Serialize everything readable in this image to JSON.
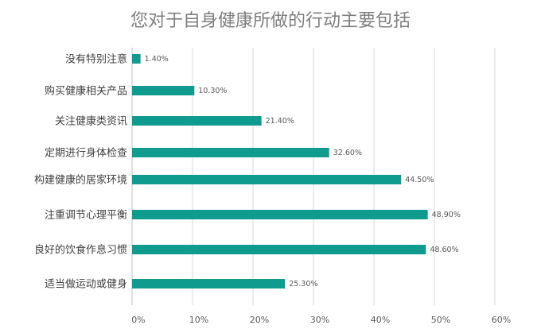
{
  "chart_data": {
    "type": "bar",
    "orientation": "horizontal",
    "title": "您对于自身健康所做的行动主要包括",
    "xlabel": "",
    "ylabel": "",
    "categories": [
      "没有特别注意",
      "购买健康相关产品",
      "关注健康类资讯",
      "定期进行身体检查",
      "构建健康的居家环境",
      "注重调节心理平衡",
      "良好的饮食作息习惯",
      "适当做运动或健身"
    ],
    "values": [
      1.4,
      10.3,
      21.4,
      32.6,
      44.5,
      48.9,
      48.6,
      25.3
    ],
    "value_labels": [
      "1.40%",
      "10.30%",
      "21.40%",
      "32.60%",
      "44.50%",
      "48.90%",
      "48.60%",
      "25.30%"
    ],
    "xlim": [
      0,
      60
    ],
    "x_ticks": [
      "0%",
      "10%",
      "20%",
      "30%",
      "40%",
      "50%",
      "60%"
    ],
    "grid": "vertical",
    "legend": "none",
    "colors": {
      "bar": "#0f9b8e",
      "grid": "#d9d9d9",
      "axis": "#bfbfbf"
    }
  }
}
